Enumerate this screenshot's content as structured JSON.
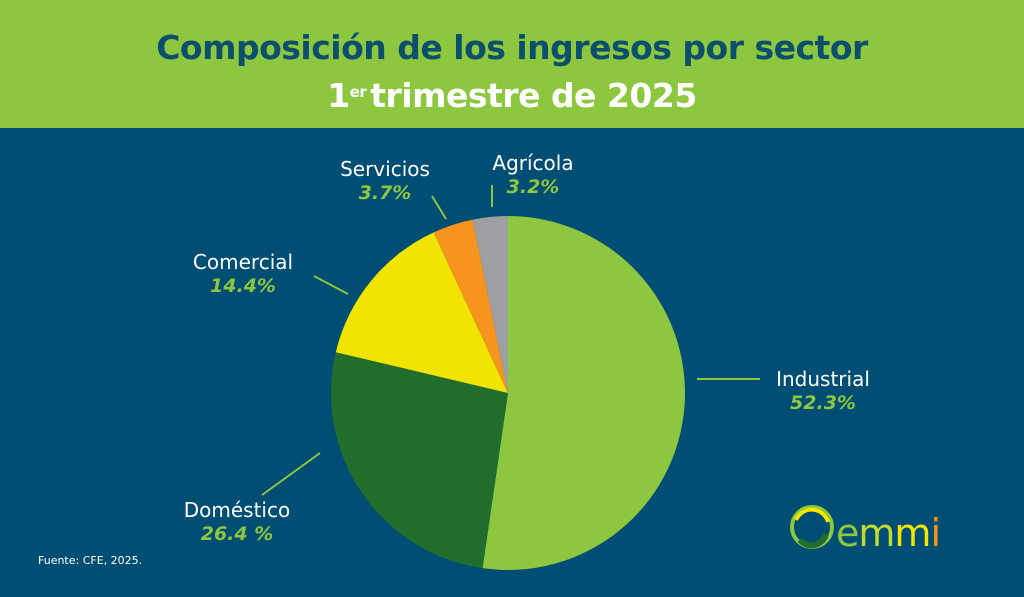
{
  "header": {
    "title": "Composición de los ingresos por sector",
    "subtitle_num": "1",
    "subtitle_sup": "er",
    "subtitle_rest": "trimestre de 2025"
  },
  "chart_data": {
    "type": "pie",
    "title": "Composición de los ingresos por sector 1er trimestre de 2025",
    "start": "top",
    "direction": "clockwise",
    "slices": [
      {
        "name": "Industrial",
        "value": 52.3,
        "label": "52.3%",
        "color": "#8dc63f"
      },
      {
        "name": "Doméstico",
        "value": 26.4,
        "label": "26.4 %",
        "color": "#216e2c"
      },
      {
        "name": "Comercial",
        "value": 14.4,
        "label": "14.4%",
        "color": "#f1e400"
      },
      {
        "name": "Servicios",
        "value": 3.7,
        "label": "3.7%",
        "color": "#f7941d"
      },
      {
        "name": "Agrícola",
        "value": 3.2,
        "label": "3.2%",
        "color": "#9d9fa2"
      }
    ]
  },
  "source": "Fuente: CFE, 2025.",
  "logo": {
    "text": "emmi"
  }
}
